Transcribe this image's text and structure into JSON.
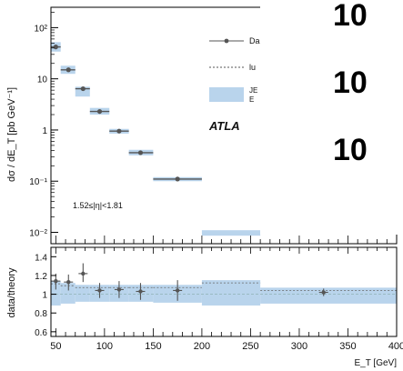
{
  "chart_data": [
    {
      "type": "scatter",
      "panel": "main",
      "ylabel": "dσ / dE_T [pb GeV⁻¹]",
      "yscale": "log",
      "ylim": [
        0.006,
        250
      ],
      "xlim": [
        45,
        400
      ],
      "yticks": [
        {
          "v": 100,
          "t": "10²"
        },
        {
          "v": 10,
          "t": "10"
        },
        {
          "v": 1,
          "t": "1"
        },
        {
          "v": 0.1,
          "t": "10⁻¹"
        },
        {
          "v": 0.01,
          "t": "10⁻²"
        }
      ],
      "annotation": "1.52≤|η|<1.81",
      "points": [
        {
          "x": 50,
          "xerr": [
            45,
            55
          ],
          "y": 42,
          "band": [
            34,
            52
          ]
        },
        {
          "x": 63,
          "xerr": [
            55,
            70
          ],
          "y": 15,
          "band": [
            12.5,
            18
          ]
        },
        {
          "x": 78,
          "xerr": [
            70,
            85
          ],
          "y": 6.4,
          "band": [
            4.5,
            7.0
          ]
        },
        {
          "x": 95,
          "xerr": [
            85,
            105
          ],
          "y": 2.3,
          "band": [
            2.0,
            2.7
          ]
        },
        {
          "x": 115,
          "xerr": [
            105,
            125
          ],
          "y": 0.95,
          "band": [
            0.85,
            1.05
          ]
        },
        {
          "x": 137,
          "xerr": [
            125,
            150
          ],
          "y": 0.36,
          "band": [
            0.32,
            0.41
          ]
        },
        {
          "x": 175,
          "xerr": [
            150,
            200
          ],
          "y": 0.11,
          "band": [
            0.1,
            0.12
          ]
        }
      ],
      "extra_band": [
        {
          "x0": 200,
          "x1": 260,
          "lo": 0.009,
          "hi": 0.011
        }
      ]
    },
    {
      "type": "scatter",
      "panel": "ratio",
      "ylabel": "data/theory",
      "xlabel": "E_T [GeV]",
      "ylim": [
        0.55,
        1.5
      ],
      "xlim": [
        45,
        400
      ],
      "yticks": [
        {
          "v": 1.4,
          "t": "1.4"
        },
        {
          "v": 1.2,
          "t": "1.2"
        },
        {
          "v": 1,
          "t": "1"
        },
        {
          "v": 0.8,
          "t": "0.8"
        },
        {
          "v": 0.6,
          "t": "0.6"
        }
      ],
      "xticks": [
        {
          "v": 50,
          "t": "50"
        },
        {
          "v": 100,
          "t": "100"
        },
        {
          "v": 150,
          "t": "150"
        },
        {
          "v": 200,
          "t": "200"
        },
        {
          "v": 250,
          "t": "250"
        },
        {
          "v": 300,
          "t": "300"
        },
        {
          "v": 350,
          "t": "350"
        },
        {
          "v": 400,
          "t": "400"
        }
      ],
      "points": [
        {
          "x": 50,
          "y": 1.14,
          "yerr": [
            1.05,
            1.22
          ]
        },
        {
          "x": 63,
          "y": 1.13,
          "yerr": [
            1.04,
            1.21
          ]
        },
        {
          "x": 78,
          "y": 1.22,
          "yerr": [
            1.13,
            1.33
          ]
        },
        {
          "x": 95,
          "y": 1.04,
          "yerr": [
            0.96,
            1.12
          ]
        },
        {
          "x": 115,
          "y": 1.05,
          "yerr": [
            0.96,
            1.14
          ]
        },
        {
          "x": 137,
          "y": 1.03,
          "yerr": [
            0.94,
            1.12
          ]
        },
        {
          "x": 175,
          "y": 1.04,
          "yerr": [
            0.93,
            1.15
          ]
        },
        {
          "x": 325,
          "y": 1.02,
          "yerr": [
            0.98,
            1.06
          ]
        }
      ],
      "bands": [
        {
          "x0": 45,
          "x1": 55,
          "lo": 0.88,
          "hi": 1.14
        },
        {
          "x0": 55,
          "x1": 70,
          "lo": 0.9,
          "hi": 1.12
        },
        {
          "x0": 70,
          "x1": 85,
          "lo": 0.92,
          "hi": 1.1
        },
        {
          "x0": 85,
          "x1": 105,
          "lo": 0.92,
          "hi": 1.1
        },
        {
          "x0": 105,
          "x1": 125,
          "lo": 0.92,
          "hi": 1.1
        },
        {
          "x0": 125,
          "x1": 150,
          "lo": 0.92,
          "hi": 1.1
        },
        {
          "x0": 150,
          "x1": 200,
          "lo": 0.91,
          "hi": 1.1
        },
        {
          "x0": 200,
          "x1": 260,
          "lo": 0.88,
          "hi": 1.15
        },
        {
          "x0": 260,
          "x1": 400,
          "lo": 0.9,
          "hi": 1.07
        }
      ]
    }
  ],
  "legend": [
    {
      "label": "Da",
      "kind": "data"
    },
    {
      "label": "lu",
      "kind": "dotted"
    },
    {
      "label": "JE",
      "label2": "E",
      "kind": "band"
    }
  ],
  "atlas_label": "ATLA",
  "overlay_text": [
    "10",
    "10",
    "10"
  ],
  "colors": {
    "band": "#b9d4ec",
    "marker": "#555555",
    "axis": "#000000",
    "overlay_bg": "#ffffff"
  }
}
